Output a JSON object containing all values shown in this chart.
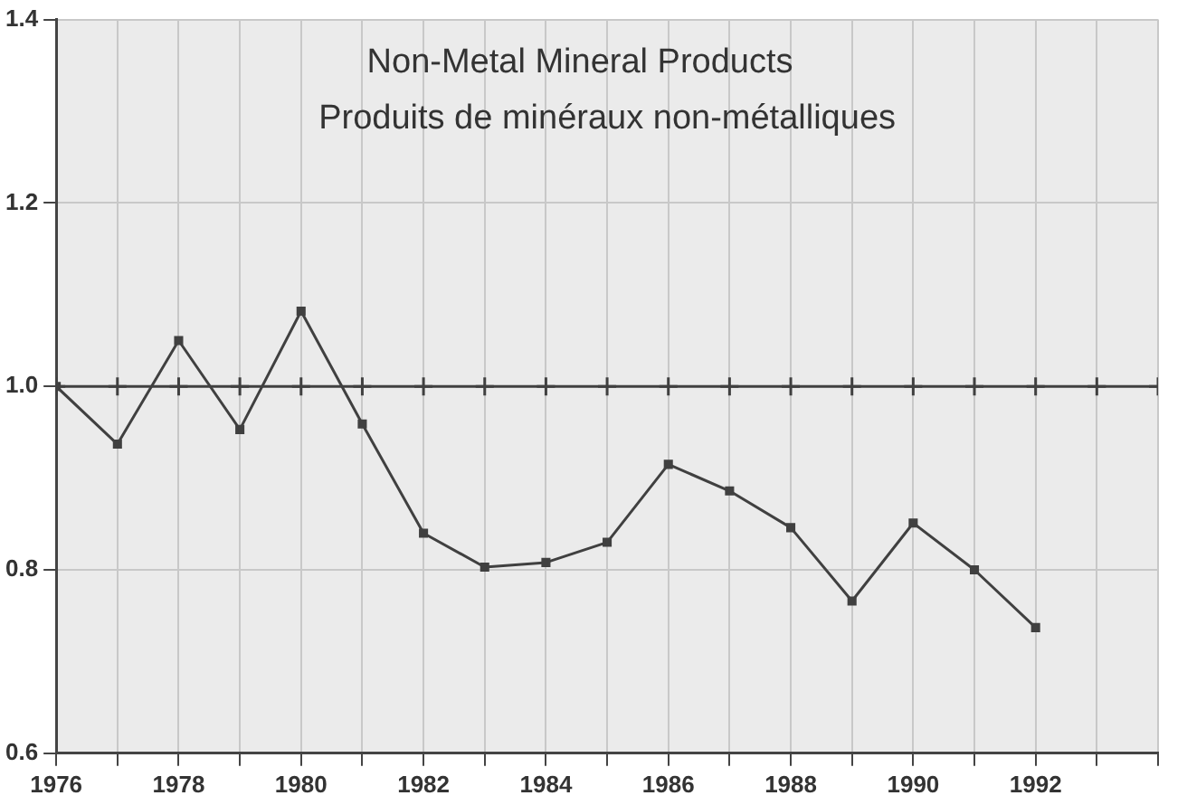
{
  "chart_data": {
    "type": "line",
    "title": "Non-Metal Mineral Products",
    "subtitle": "Produits de minéraux non-métalliques",
    "x": [
      1976,
      1977,
      1978,
      1979,
      1980,
      1981,
      1982,
      1983,
      1984,
      1985,
      1986,
      1987,
      1988,
      1989,
      1990,
      1991,
      1992
    ],
    "series": [
      {
        "color": "#404040",
        "marker": "cross",
        "x": [
          1976,
          1977,
          1978,
          1979,
          1980,
          1981,
          1982,
          1983,
          1984,
          1985,
          1986,
          1987,
          1988,
          1989,
          1990,
          1991,
          1992,
          1993,
          1994
        ],
        "values": [
          1.0,
          1.0,
          1.0,
          1.0,
          1.0,
          1.0,
          1.0,
          1.0,
          1.0,
          1.0,
          1.0,
          1.0,
          1.0,
          1.0,
          1.0,
          1.0,
          1.0,
          1.0,
          1.0
        ]
      },
      {
        "color": "#404040",
        "marker": "square",
        "values": [
          1.0,
          0.937,
          1.05,
          0.953,
          1.082,
          0.959,
          0.84,
          0.803,
          0.808,
          0.83,
          0.915,
          0.886,
          0.846,
          0.766,
          0.851,
          0.8,
          0.737
        ]
      }
    ],
    "xlim": [
      1976,
      1994
    ],
    "xticks": [
      1976,
      {
        "value": 1977,
        "label": null
      },
      1978,
      {
        "value": 1979,
        "label": null
      },
      1980,
      {
        "value": 1981,
        "label": null
      },
      1982,
      {
        "value": 1983,
        "label": null
      },
      1984,
      {
        "value": 1985,
        "label": null
      },
      1986,
      {
        "value": 1987,
        "label": null
      },
      1988,
      {
        "value": 1989,
        "label": null
      },
      1990,
      {
        "value": 1991,
        "label": null
      },
      1992,
      {
        "value": 1993,
        "label": null
      },
      {
        "value": 1994,
        "label": null
      }
    ],
    "ylim": [
      0.6,
      1.4
    ],
    "yticks": [
      0.6,
      0.8,
      {
        "value": 1.0,
        "label": "1.0"
      },
      1.2,
      1.4
    ],
    "grid": true,
    "legend": false
  }
}
